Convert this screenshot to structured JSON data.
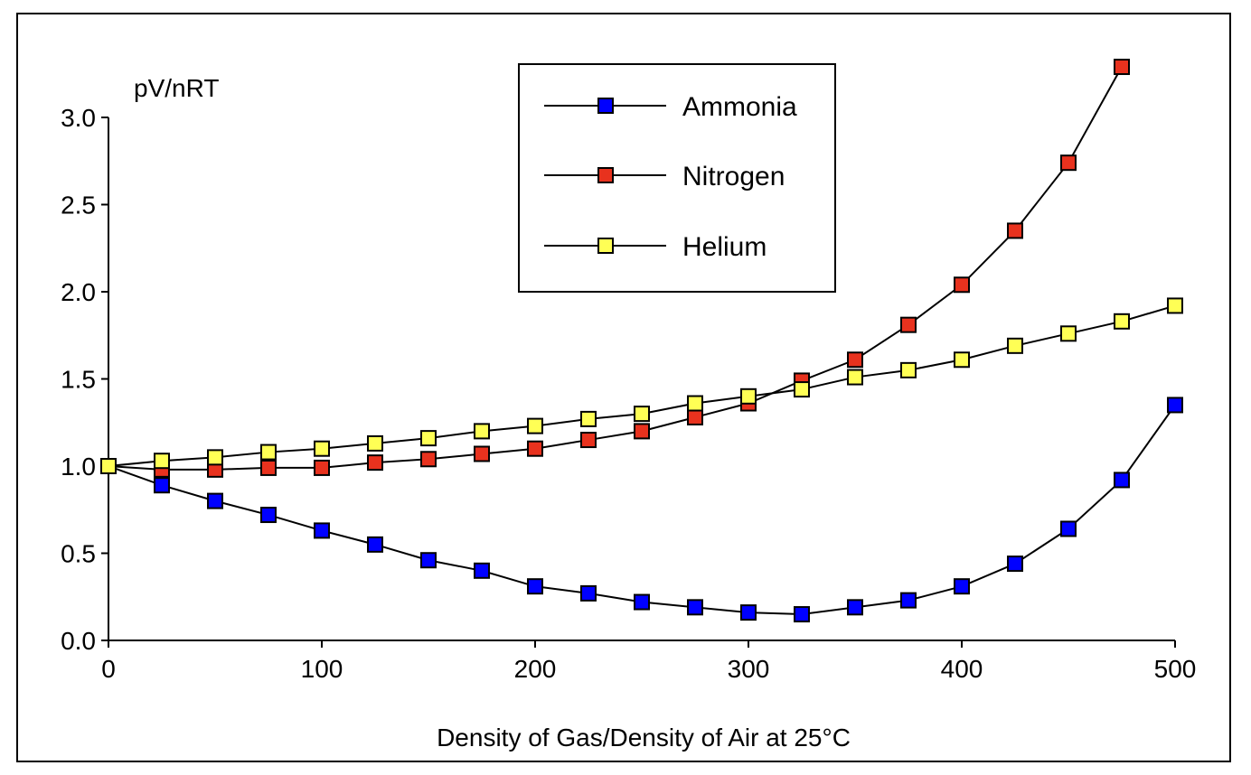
{
  "chart_data": {
    "type": "line",
    "title": "",
    "xlabel": "Density of Gas/Density of Air at 25°C",
    "ylabel": "pV/nRT",
    "xlim": [
      0,
      500
    ],
    "ylim": [
      0,
      3.0
    ],
    "xticks": [
      0,
      100,
      200,
      300,
      400,
      500
    ],
    "xtick_labels": [
      "0",
      "100",
      "200",
      "300",
      "400",
      "500"
    ],
    "yticks": [
      0,
      0.5,
      1.0,
      1.5,
      2.0,
      2.5,
      3.0
    ],
    "ytick_labels": [
      "0.0",
      "0.5",
      "1.0",
      "1.5",
      "2.0",
      "2.5",
      "3.0"
    ],
    "grid": false,
    "legend_position": "top-center",
    "x": [
      0,
      25,
      50,
      75,
      100,
      125,
      150,
      175,
      200,
      225,
      250,
      275,
      300,
      325,
      350,
      375,
      400,
      425,
      450,
      475,
      500
    ],
    "series": [
      {
        "name": "Ammonia",
        "color": "#0000ff",
        "values": [
          1.0,
          0.89,
          0.8,
          0.72,
          0.63,
          0.55,
          0.46,
          0.4,
          0.31,
          0.27,
          0.22,
          0.19,
          0.16,
          0.15,
          0.19,
          0.23,
          0.31,
          0.44,
          0.64,
          0.92,
          1.35
        ]
      },
      {
        "name": "Nitrogen",
        "color": "#e8321e",
        "values": [
          1.0,
          0.98,
          0.98,
          0.99,
          0.99,
          1.02,
          1.04,
          1.07,
          1.1,
          1.15,
          1.2,
          1.28,
          1.36,
          1.49,
          1.61,
          1.81,
          2.04,
          2.35,
          2.74,
          3.29,
          null
        ]
      },
      {
        "name": "Helium",
        "color": "#ffff55",
        "values": [
          1.0,
          1.03,
          1.05,
          1.08,
          1.1,
          1.13,
          1.16,
          1.2,
          1.23,
          1.27,
          1.3,
          1.36,
          1.4,
          1.44,
          1.51,
          1.55,
          1.61,
          1.69,
          1.76,
          1.83,
          1.92
        ]
      }
    ]
  }
}
